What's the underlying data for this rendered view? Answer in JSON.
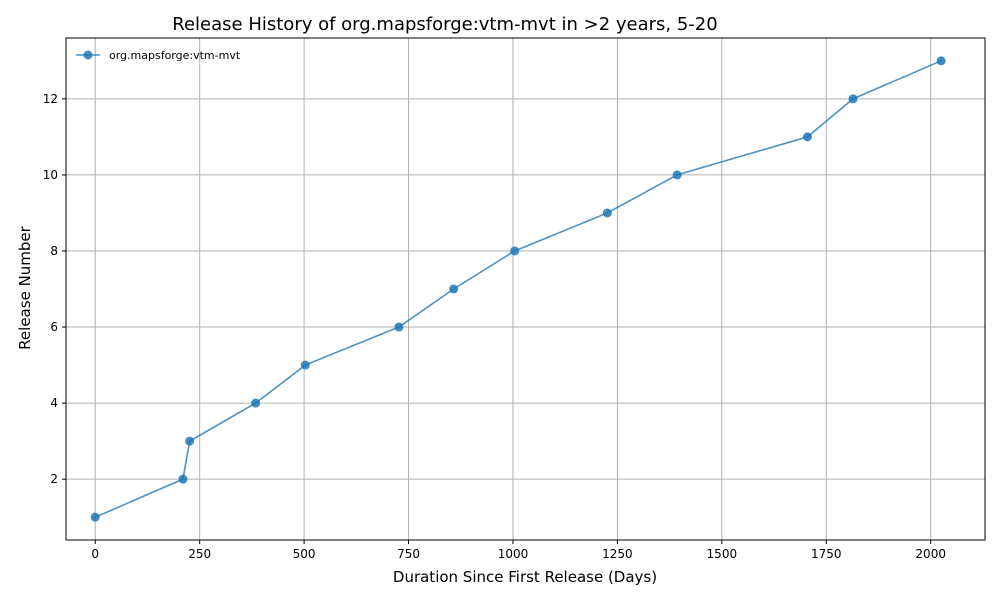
{
  "chart_data": {
    "type": "line",
    "title": "Release History of org.mapsforge:vtm-mvt in >2 years, 5-20",
    "xlabel": "Duration Since First Release (Days)",
    "ylabel": "Release Number",
    "xlim": [
      -70,
      2130
    ],
    "ylim": [
      0.4,
      13.6
    ],
    "xticks": [
      0,
      250,
      500,
      750,
      1000,
      1250,
      1500,
      1750,
      2000
    ],
    "yticks": [
      2,
      4,
      6,
      8,
      10,
      12
    ],
    "grid": true,
    "legend_position": "top-left",
    "series": [
      {
        "name": "org.mapsforge:vtm-mvt",
        "color": "#1f77b4",
        "x": [
          0,
          210,
          226,
          384,
          503,
          727,
          858,
          1004,
          1226,
          1393,
          1705,
          1814,
          2025
        ],
        "y": [
          1,
          2,
          3,
          4,
          5,
          6,
          7,
          8,
          9,
          10,
          11,
          12,
          13
        ]
      }
    ]
  }
}
